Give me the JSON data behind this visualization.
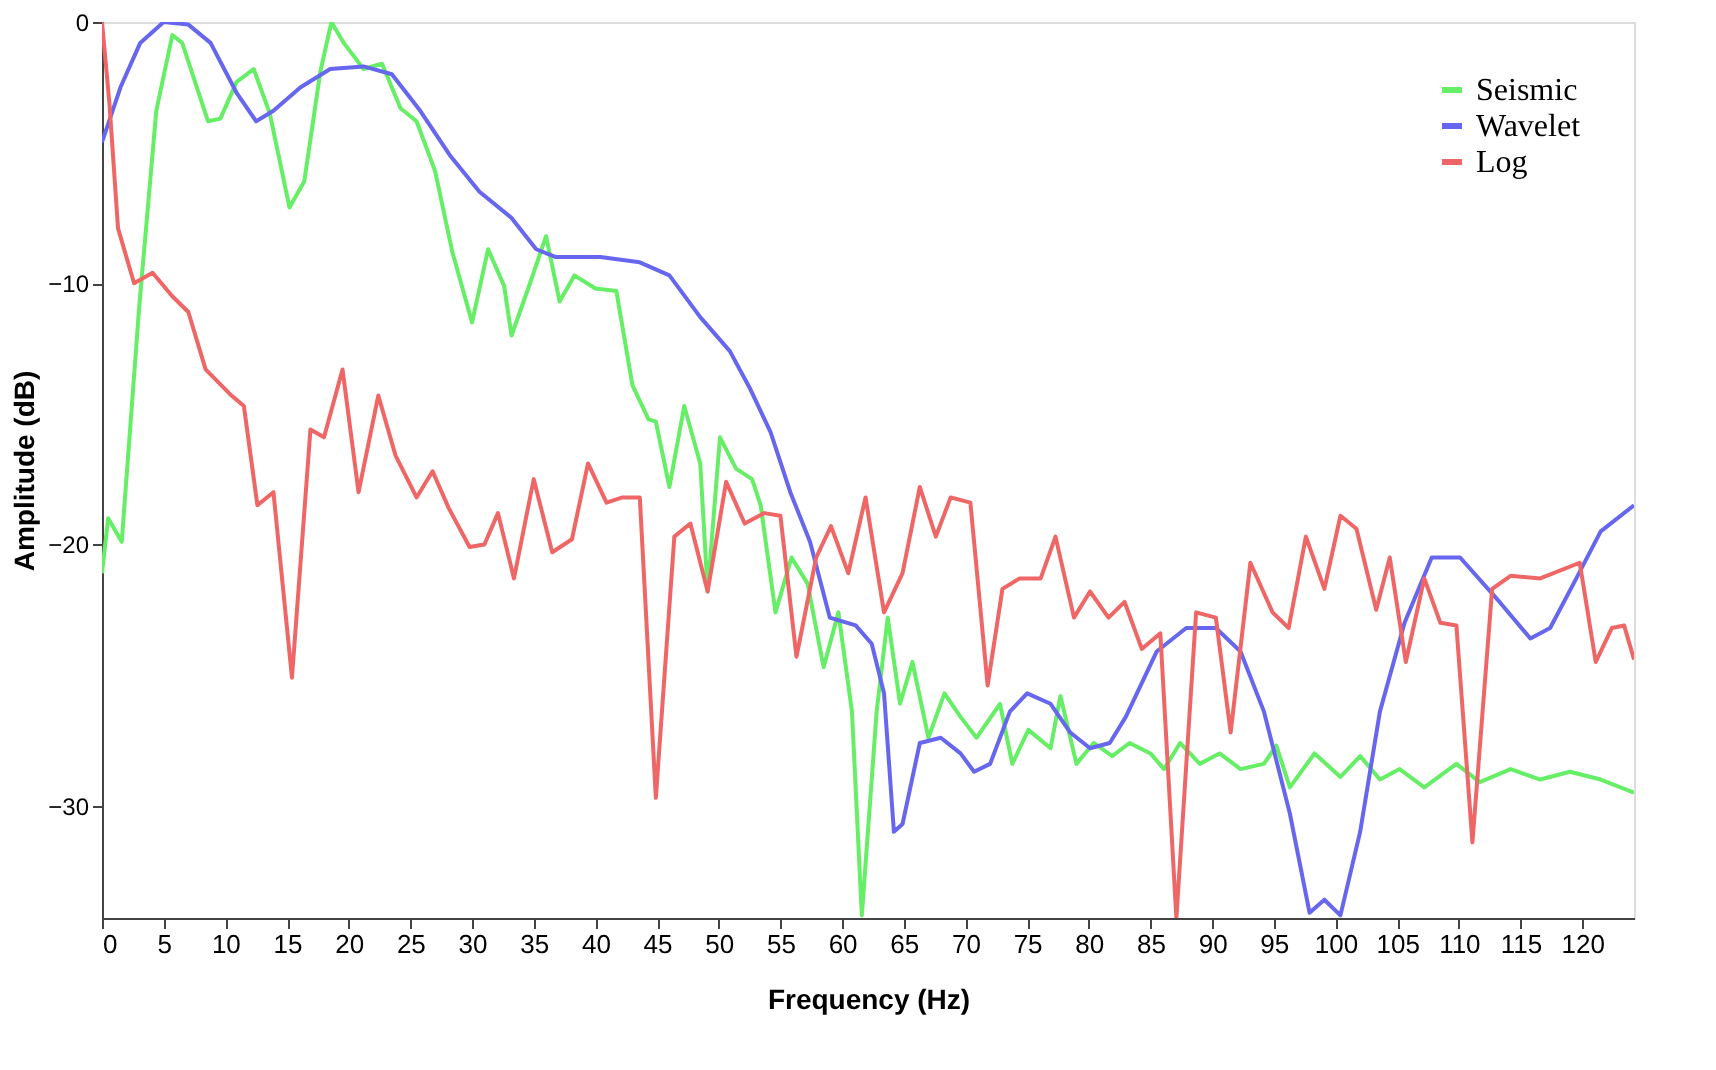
{
  "chart_data": {
    "type": "line",
    "xlabel": "Frequency (Hz)",
    "ylabel": "Amplitude (dB)",
    "xlim": [
      0,
      124.2
    ],
    "ylim": [
      -34.3,
      0
    ],
    "xticks": [
      0,
      5,
      10,
      15,
      20,
      25,
      30,
      35,
      40,
      45,
      50,
      55,
      60,
      65,
      70,
      75,
      80,
      85,
      90,
      95,
      100,
      105,
      110,
      115,
      120
    ],
    "yticks": [
      0,
      -10,
      -20,
      -30
    ],
    "grid": false,
    "legend": "top right",
    "marker": "none",
    "line_style": "solid",
    "series": [
      {
        "name": "Seismic",
        "color": "#66ee66",
        "x": [
          0,
          0.5,
          1.6,
          3,
          4.4,
          5.7,
          6.5,
          8.6,
          9.6,
          10.9,
          12.3,
          13.6,
          15.2,
          16.4,
          17.7,
          18.6,
          19.6,
          21.2,
          22.7,
          24.2,
          25.5,
          27,
          28.4,
          30,
          31.3,
          32.6,
          33.2,
          34.7,
          36,
          37.1,
          38.3,
          40,
          41.7,
          43,
          44.3,
          44.9,
          46,
          47.2,
          48.5,
          49.1,
          50.1,
          51.4,
          52.7,
          53.4,
          54.6,
          55.9,
          57.2,
          58.5,
          59.7,
          60.8,
          61.6,
          62.8,
          63.7,
          64.7,
          65.7,
          67,
          68.3,
          69.6,
          70.9,
          72.8,
          73.8,
          75.1,
          76.9,
          77.7,
          79,
          80.4,
          81.9,
          83.3,
          85,
          86.1,
          87.4,
          89,
          90.6,
          92.3,
          94.2,
          95.2,
          96.3,
          98.3,
          100.4,
          102,
          103.6,
          105.2,
          107.2,
          109.8,
          111.7,
          114.2,
          116.6,
          119,
          121.5,
          124.2
        ],
        "values": [
          -21.1,
          -19,
          -19.9,
          -11,
          -3.4,
          -0.5,
          -0.8,
          -3.8,
          -3.7,
          -2.3,
          -1.8,
          -3.5,
          -7.1,
          -6.1,
          -1.9,
          0,
          -0.8,
          -1.8,
          -1.6,
          -3.3,
          -3.8,
          -5.7,
          -8.8,
          -11.5,
          -8.7,
          -10.1,
          -12,
          -10,
          -8.2,
          -10.7,
          -9.7,
          -10.2,
          -10.3,
          -13.9,
          -15.2,
          -15.3,
          -17.8,
          -14.7,
          -16.9,
          -21.8,
          -15.9,
          -17.1,
          -17.5,
          -18.5,
          -22.6,
          -20.5,
          -21.5,
          -24.7,
          -22.6,
          -26.4,
          -34.2,
          -26.4,
          -22.8,
          -26.1,
          -24.5,
          -27.4,
          -25.7,
          -26.6,
          -27.4,
          -26.1,
          -28.4,
          -27.1,
          -27.8,
          -25.8,
          -28.4,
          -27.6,
          -28.1,
          -27.6,
          -28,
          -28.6,
          -27.6,
          -28.4,
          -28,
          -28.6,
          -28.4,
          -27.7,
          -29.3,
          -28,
          -28.9,
          -28.1,
          -29,
          -28.6,
          -29.3,
          -28.4,
          -29.1,
          -28.6,
          -29,
          -28.7,
          -29,
          -29.5
        ]
      },
      {
        "name": "Wavelet",
        "color": "#6666ee",
        "x": [
          0,
          1.5,
          3.1,
          5,
          7,
          8.8,
          10.9,
          12.5,
          13.9,
          16.1,
          18.5,
          21.2,
          23.5,
          25.8,
          28.2,
          30.6,
          33.2,
          35.2,
          36.8,
          40.4,
          43.6,
          46,
          48.5,
          50.9,
          52.5,
          54.2,
          55.8,
          57.4,
          59,
          61.1,
          62.4,
          63.4,
          64.2,
          64.9,
          66.3,
          68,
          69.6,
          70.7,
          72,
          73.6,
          75,
          76.9,
          78.5,
          80.1,
          81.7,
          83,
          85.5,
          87.9,
          90.3,
          92.3,
          94.2,
          96.3,
          97.9,
          99.1,
          100.4,
          102,
          103.6,
          105.6,
          107.8,
          110.1,
          113.3,
          115.8,
          117.4,
          119.3,
          121.5,
          124.2
        ],
        "values": [
          -4.6,
          -2.5,
          -0.8,
          0,
          -0.1,
          -0.8,
          -2.7,
          -3.8,
          -3.4,
          -2.5,
          -1.8,
          -1.7,
          -2,
          -3.4,
          -5.1,
          -6.5,
          -7.5,
          -8.7,
          -9,
          -9,
          -9.2,
          -9.7,
          -11.3,
          -12.6,
          -14,
          -15.7,
          -18,
          -19.9,
          -22.8,
          -23.1,
          -23.8,
          -25.7,
          -31,
          -30.7,
          -27.6,
          -27.4,
          -28,
          -28.7,
          -28.4,
          -26.4,
          -25.7,
          -26.1,
          -27.2,
          -27.8,
          -27.6,
          -26.6,
          -24.1,
          -23.2,
          -23.2,
          -24.1,
          -26.4,
          -30.3,
          -34.1,
          -33.6,
          -34.2,
          -31,
          -26.4,
          -23,
          -20.5,
          -20.5,
          -22.2,
          -23.6,
          -23.2,
          -21.5,
          -19.5,
          -18.5
        ]
      },
      {
        "name": "Log",
        "color": "#ee6666",
        "x": [
          0,
          0.6,
          1.3,
          2.6,
          4.1,
          5.7,
          7,
          8.4,
          10.5,
          11.5,
          12.6,
          13.9,
          15.4,
          16.9,
          18,
          19.5,
          20.8,
          22.4,
          23.8,
          25.5,
          26.8,
          28.1,
          29.8,
          31,
          32.1,
          33.4,
          35,
          36.5,
          38.1,
          39.4,
          40.9,
          42.2,
          43.6,
          44.9,
          46.4,
          47.7,
          49.1,
          50.6,
          52.1,
          53.7,
          55,
          56.3,
          57.9,
          59.1,
          60.5,
          61.9,
          63.4,
          64.9,
          66.3,
          67.6,
          68.8,
          70.4,
          71.8,
          73,
          74.4,
          76.1,
          77.3,
          78.8,
          80.1,
          81.6,
          82.9,
          84.3,
          85.8,
          87.1,
          88.7,
          90.3,
          91.5,
          93.1,
          94.9,
          96.2,
          97.6,
          99.1,
          100.4,
          101.7,
          103.3,
          104.4,
          105.7,
          107.2,
          108.5,
          109.8,
          111.1,
          112.7,
          114.2,
          116.6,
          119.8,
          121.1,
          122.4,
          123.4,
          124.2
        ],
        "values": [
          0,
          -3.1,
          -7.9,
          -10,
          -9.6,
          -10.5,
          -11.1,
          -13.3,
          -14.3,
          -14.7,
          -18.5,
          -18,
          -25.1,
          -15.6,
          -15.9,
          -13.3,
          -18,
          -14.3,
          -16.6,
          -18.2,
          -17.2,
          -18.6,
          -20.1,
          -20,
          -18.8,
          -21.3,
          -17.5,
          -20.3,
          -19.8,
          -16.9,
          -18.4,
          -18.2,
          -18.2,
          -29.7,
          -19.7,
          -19.2,
          -21.8,
          -17.6,
          -19.2,
          -18.8,
          -18.9,
          -24.3,
          -20.5,
          -19.3,
          -21.1,
          -18.2,
          -22.6,
          -21.1,
          -17.8,
          -19.7,
          -18.2,
          -18.4,
          -25.4,
          -21.7,
          -21.3,
          -21.3,
          -19.7,
          -22.8,
          -21.8,
          -22.8,
          -22.2,
          -24,
          -23.4,
          -34.3,
          -22.6,
          -22.8,
          -27.2,
          -20.7,
          -22.6,
          -23.2,
          -19.7,
          -21.7,
          -18.9,
          -19.4,
          -22.5,
          -20.5,
          -24.5,
          -21.3,
          -23,
          -23.1,
          -31.4,
          -21.7,
          -21.2,
          -21.3,
          -20.7,
          -24.5,
          -23.2,
          -23.1,
          -24.4
        ]
      }
    ]
  }
}
